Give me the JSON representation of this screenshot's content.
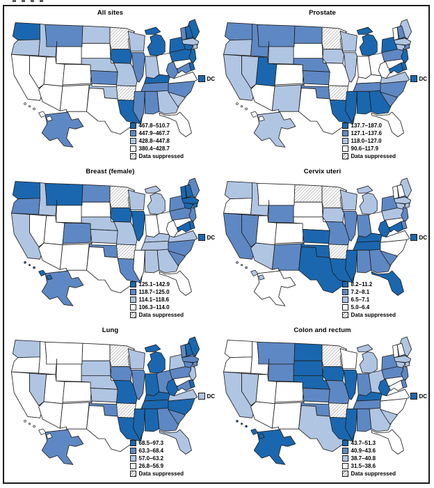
{
  "figure": {
    "colors": {
      "q1": "#1a67af",
      "q2": "#5e88c3",
      "q3": "#b0c5e2",
      "q4": "#ffffff"
    },
    "suppressed_pattern": "gray-diagonal-hatch",
    "panels": [
      {
        "title": "All sites",
        "dc_label": "DC",
        "dc_category": "q1",
        "legend": [
          {
            "category": "q1",
            "label": "467.8–510.7"
          },
          {
            "category": "q2",
            "label": "447.9–467.7"
          },
          {
            "category": "q3",
            "label": "428.8–447.8"
          },
          {
            "category": "q4",
            "label": "380.4–428.7"
          },
          {
            "category": "sup",
            "label": "Data suppressed"
          }
        ],
        "states": {
          "WA": "q1",
          "OR": "q3",
          "CA": "q4",
          "NV": "q4",
          "ID": "q3",
          "MT": "q2",
          "WY": "q4",
          "UT": "q4",
          "CO": "q4",
          "AZ": "q4",
          "NM": "q4",
          "ND": "q3",
          "SD": "q4",
          "NE": "q3",
          "KS": "q2",
          "OK": "q3",
          "TX": "q4",
          "MN": "sup",
          "IA": "q1",
          "MO": "q3",
          "AR": "sup",
          "LA": "q1",
          "WI": "q3",
          "IL": "q2",
          "MS": "q2",
          "MI": "q1",
          "IN": "q3",
          "OH": "q4",
          "KY": "q1",
          "TN": "q2",
          "AL": "q2",
          "GA": "q3",
          "FL": "q4",
          "SC": "q3",
          "NC": "q2",
          "VA": "q4",
          "WV": "q2",
          "PA": "q1",
          "NY": "q1",
          "ME": "q1",
          "NH": "q1",
          "VT": "q2",
          "MA": "q3",
          "CT": "q1",
          "RI": "q3",
          "NJ": "q1",
          "DE": "q1",
          "MD": "q2",
          "AK": "q2",
          "HI": "q4"
        }
      },
      {
        "title": "Prostate",
        "dc_label": "DC",
        "dc_category": "q1",
        "legend": [
          {
            "category": "q1",
            "label": "137.7–187.0"
          },
          {
            "category": "q2",
            "label": "127.1–137.6"
          },
          {
            "category": "q3",
            "label": "118.0–127.0"
          },
          {
            "category": "q4",
            "label": "90.6–117.9"
          },
          {
            "category": "sup",
            "label": "Data suppressed"
          }
        ],
        "states": {
          "WA": "q2",
          "OR": "q3",
          "CA": "q3",
          "NV": "q3",
          "ID": "q2",
          "MT": "q2",
          "WY": "q3",
          "UT": "q1",
          "CO": "q4",
          "AZ": "q4",
          "NM": "q3",
          "ND": "q2",
          "SD": "q4",
          "NE": "q2",
          "KS": "q2",
          "OK": "q2",
          "TX": "q4",
          "MN": "sup",
          "IA": "q3",
          "MO": "q4",
          "AR": "sup",
          "LA": "q1",
          "WI": "q3",
          "IL": "q3",
          "MS": "q1",
          "MI": "q1",
          "IN": "q4",
          "OH": "q4",
          "KY": "q4",
          "TN": "q2",
          "AL": "q1",
          "GA": "q1",
          "FL": "q4",
          "SC": "q2",
          "NC": "q2",
          "VA": "q3",
          "WV": "q4",
          "PA": "q2",
          "NY": "q1",
          "ME": "q3",
          "NH": "q2",
          "VT": "q4",
          "MA": "q3",
          "CT": "q3",
          "RI": "q2",
          "NJ": "q1",
          "DE": "q1",
          "MD": "q1",
          "AK": "q3",
          "HI": "q4"
        }
      },
      {
        "title": "Breast (female)",
        "dc_label": "DC",
        "dc_category": "q1",
        "legend": [
          {
            "category": "q1",
            "label": "125.1–142.9"
          },
          {
            "category": "q2",
            "label": "118.7–125.0"
          },
          {
            "category": "q3",
            "label": "114.1–118.6"
          },
          {
            "category": "q4",
            "label": "106.3–114.0"
          },
          {
            "category": "sup",
            "label": "Data suppressed"
          }
        ],
        "states": {
          "WA": "q1",
          "OR": "q2",
          "CA": "q3",
          "NV": "q4",
          "ID": "q3",
          "MT": "q1",
          "WY": "q4",
          "UT": "q4",
          "CO": "q2",
          "AZ": "q4",
          "NM": "q4",
          "ND": "q2",
          "SD": "q4",
          "NE": "q3",
          "KS": "q3",
          "OK": "q2",
          "TX": "q4",
          "MN": "sup",
          "IA": "q1",
          "MO": "q3",
          "AR": "sup",
          "LA": "q2",
          "WI": "q3",
          "IL": "q1",
          "MS": "q4",
          "MI": "q3",
          "IN": "q4",
          "OH": "q4",
          "KY": "q3",
          "TN": "q3",
          "AL": "q3",
          "GA": "q3",
          "FL": "q4",
          "SC": "q2",
          "NC": "q2",
          "VA": "q3",
          "WV": "q4",
          "PA": "q2",
          "NY": "q2",
          "ME": "q2",
          "NH": "q1",
          "VT": "q1",
          "MA": "q1",
          "CT": "q1",
          "RI": "q1",
          "NJ": "q2",
          "DE": "q1",
          "MD": "q1",
          "AK": "q2",
          "HI": "q1"
        }
      },
      {
        "title": "Cervix uteri",
        "dc_label": "DC",
        "dc_category": "q1",
        "legend": [
          {
            "category": "q1",
            "label": "8.2–11.2"
          },
          {
            "category": "q2",
            "label": "7.2–8.1"
          },
          {
            "category": "q3",
            "label": "6.5–7.1"
          },
          {
            "category": "q4",
            "label": "5.0–6.4"
          },
          {
            "category": "sup",
            "label": "Data suppressed"
          }
        ],
        "states": {
          "WA": "q3",
          "OR": "q4",
          "CA": "q2",
          "NV": "q2",
          "ID": "q3",
          "MT": "q4",
          "WY": "q2",
          "UT": "q4",
          "CO": "q4",
          "AZ": "q3",
          "NM": "q2",
          "ND": "sup",
          "SD": "q4",
          "NE": "q4",
          "KS": "q1",
          "OK": "q1",
          "TX": "q1",
          "MN": "sup",
          "IA": "q3",
          "MO": "q2",
          "AR": "sup",
          "LA": "q1",
          "WI": "q3",
          "IL": "q2",
          "MS": "q1",
          "MI": "q3",
          "IN": "q2",
          "OH": "q4",
          "KY": "q1",
          "TN": "q1",
          "AL": "q2",
          "GA": "q2",
          "FL": "q1",
          "SC": "q2",
          "NC": "q4",
          "VA": "q4",
          "WV": "q1",
          "PA": "q3",
          "NY": "q2",
          "ME": "q3",
          "NH": "q4",
          "VT": "q4",
          "MA": "q3",
          "CT": "q3",
          "RI": "q3",
          "NJ": "q2",
          "DE": "q2",
          "MD": "q1",
          "AK": "q4",
          "HI": "q3"
        }
      },
      {
        "title": "Lung",
        "dc_label": "DC",
        "dc_category": "q3",
        "legend": [
          {
            "category": "q1",
            "label": "68.5–97.3"
          },
          {
            "category": "q2",
            "label": "63.3–68.4"
          },
          {
            "category": "q3",
            "label": "57.0–63.2"
          },
          {
            "category": "q4",
            "label": "26.8–56.9"
          },
          {
            "category": "sup",
            "label": "Data suppressed"
          }
        ],
        "states": {
          "WA": "q3",
          "OR": "q4",
          "CA": "q4",
          "NV": "q3",
          "ID": "q4",
          "MT": "q4",
          "WY": "q4",
          "UT": "q4",
          "CO": "q4",
          "AZ": "q4",
          "NM": "q4",
          "ND": "q4",
          "SD": "q3",
          "NE": "q3",
          "KS": "q3",
          "OK": "q2",
          "TX": "q4",
          "MN": "sup",
          "IA": "q2",
          "MO": "q1",
          "AR": "sup",
          "LA": "q1",
          "WI": "q3",
          "IL": "q2",
          "MS": "q1",
          "MI": "q1",
          "IN": "q1",
          "OH": "q2",
          "KY": "q1",
          "TN": "q1",
          "AL": "q1",
          "GA": "q2",
          "FL": "q3",
          "SC": "q2",
          "NC": "q1",
          "VA": "q3",
          "WV": "q1",
          "PA": "q2",
          "NY": "q3",
          "ME": "q1",
          "NH": "q1",
          "VT": "q2",
          "MA": "q2",
          "CT": "q2",
          "RI": "q2",
          "NJ": "q3",
          "DE": "q1",
          "MD": "q2",
          "AK": "q2",
          "HI": "q4"
        }
      },
      {
        "title": "Colon and rectum",
        "dc_label": "DC",
        "dc_category": "q1",
        "legend": [
          {
            "category": "q1",
            "label": "43.7–51.3"
          },
          {
            "category": "q2",
            "label": "40.9–43.6"
          },
          {
            "category": "q3",
            "label": "38.7–40.8"
          },
          {
            "category": "q4",
            "label": "31.5–38.6"
          },
          {
            "category": "sup",
            "label": "Data suppressed"
          }
        ],
        "states": {
          "WA": "q4",
          "OR": "q4",
          "CA": "q3",
          "NV": "q3",
          "ID": "q4",
          "MT": "q2",
          "WY": "q2",
          "UT": "q4",
          "CO": "q4",
          "AZ": "q4",
          "NM": "q4",
          "ND": "q1",
          "SD": "q1",
          "NE": "q1",
          "KS": "q2",
          "OK": "q2",
          "TX": "q3",
          "MN": "sup",
          "IA": "q1",
          "MO": "q2",
          "AR": "sup",
          "LA": "q1",
          "WI": "q4",
          "IL": "q1",
          "MS": "q1",
          "MI": "q3",
          "IN": "q2",
          "OH": "q3",
          "KY": "q1",
          "TN": "q2",
          "AL": "q2",
          "GA": "q3",
          "FL": "q4",
          "SC": "q3",
          "NC": "q4",
          "VA": "q4",
          "WV": "q1",
          "PA": "q2",
          "NY": "q2",
          "ME": "q3",
          "NH": "q4",
          "VT": "q4",
          "MA": "q3",
          "CT": "q3",
          "RI": "q3",
          "NJ": "q2",
          "DE": "q2",
          "MD": "q4",
          "AK": "q1",
          "HI": "q1"
        }
      }
    ]
  }
}
